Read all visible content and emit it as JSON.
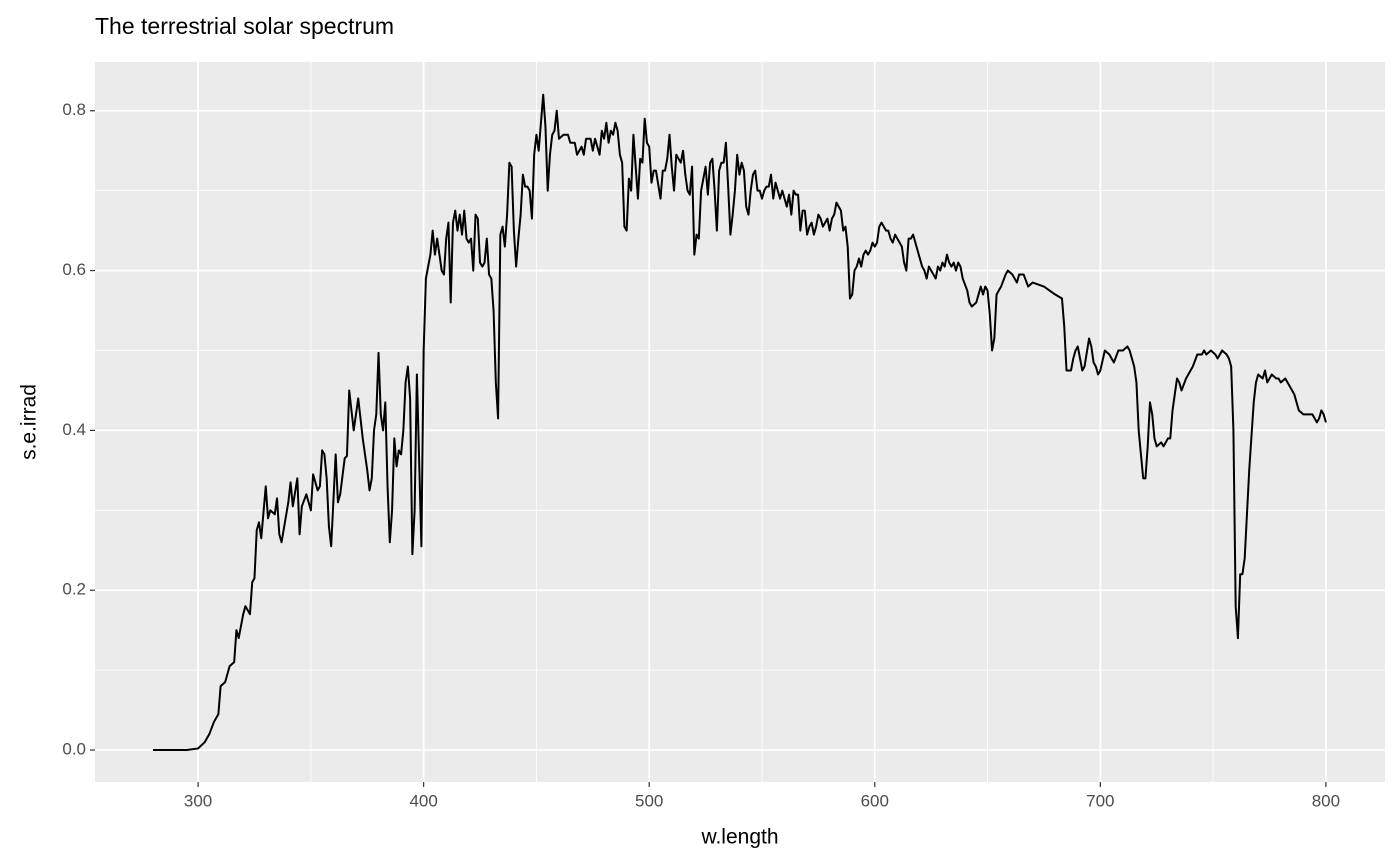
{
  "chart_data": {
    "type": "line",
    "title": "The terrestrial solar spectrum",
    "x_label": "w.length",
    "y_label": "s.e.irrad",
    "xlim": [
      254.3,
      826.2
    ],
    "ylim": [
      -0.04,
      0.861
    ],
    "xticks": [
      300,
      400,
      500,
      600,
      700,
      800
    ],
    "yticks": [
      {
        "value": 0,
        "label": "0.0"
      },
      0.2,
      0.4,
      0.6,
      0.8
    ],
    "x_minor_grid": [
      350,
      450,
      550,
      650,
      750
    ],
    "y_minor_grid": [
      0.1,
      0.3,
      0.5,
      0.7
    ],
    "grid": true,
    "series": [
      {
        "name": "s.e.irrad",
        "color": "#000000",
        "x": [
          280,
          290,
          295,
          300,
          303,
          305,
          307,
          309,
          310,
          312,
          314,
          316,
          317,
          318,
          320,
          321,
          323,
          324,
          325,
          326,
          327,
          328,
          330,
          331,
          332,
          334,
          335,
          336,
          337,
          340,
          341,
          342,
          344,
          345,
          346,
          348,
          350,
          351,
          353,
          354,
          355,
          356,
          357,
          358,
          359,
          361,
          362,
          363,
          365,
          366,
          367,
          369,
          371,
          373,
          375,
          376,
          377,
          378,
          379,
          380,
          381,
          382,
          383,
          384,
          385,
          386,
          387,
          388,
          389,
          390,
          391,
          392,
          393,
          394,
          395,
          396,
          397,
          399,
          400,
          401,
          403,
          404,
          405,
          406,
          408,
          409,
          410,
          411,
          412,
          413,
          414,
          415,
          416,
          417,
          418,
          419,
          420,
          421,
          422,
          423,
          424,
          425,
          426,
          427,
          428,
          429,
          430,
          431,
          432,
          433,
          434,
          435,
          436,
          437,
          438,
          439,
          440,
          441,
          442,
          443,
          444,
          445,
          446,
          447,
          448,
          449,
          450,
          451,
          452,
          453,
          454,
          455,
          456,
          457,
          458,
          459,
          460,
          462,
          464,
          465,
          467,
          468,
          470,
          471,
          472,
          474,
          475,
          476,
          478,
          479,
          480,
          481,
          482,
          483,
          484,
          485,
          486,
          487,
          488,
          489,
          490,
          491,
          492,
          493,
          494,
          495,
          496,
          497,
          498,
          499,
          500,
          501,
          502,
          503,
          505,
          506,
          507,
          508,
          509,
          510,
          511,
          512,
          513,
          514,
          515,
          516,
          517,
          518,
          519,
          520,
          521,
          522,
          523,
          525,
          526,
          527,
          528,
          529,
          530,
          531,
          532,
          533,
          534,
          535,
          536,
          537,
          538,
          539,
          540,
          541,
          542,
          543,
          544,
          545,
          546,
          547,
          548,
          549,
          550,
          551,
          552,
          553,
          554,
          555,
          556,
          557,
          558,
          559,
          560,
          561,
          562,
          563,
          564,
          565,
          566,
          567,
          568,
          569,
          570,
          571,
          572,
          573,
          574,
          575,
          576,
          577,
          578,
          579,
          580,
          581,
          582,
          583,
          584,
          585,
          586,
          587,
          588,
          589,
          590,
          591,
          592,
          593,
          594,
          595,
          596,
          597,
          598,
          599,
          600,
          601,
          602,
          603,
          605,
          606,
          607,
          608,
          609,
          610,
          611,
          612,
          613,
          614,
          615,
          616,
          617,
          618,
          619,
          620,
          621,
          622,
          623,
          624,
          625,
          626,
          627,
          628,
          629,
          630,
          631,
          632,
          633,
          634,
          635,
          636,
          637,
          638,
          639,
          641,
          642,
          643,
          645,
          647,
          648,
          649,
          650,
          651,
          652,
          653,
          654,
          656,
          658,
          659,
          661,
          662,
          663,
          664,
          666,
          668,
          670,
          675,
          680,
          683,
          684,
          685,
          686,
          687,
          688,
          689,
          690,
          692,
          693,
          695,
          696,
          697,
          698,
          699,
          700,
          702,
          704,
          705,
          706,
          708,
          710,
          712,
          713,
          715,
          716,
          717,
          718,
          719,
          720,
          721,
          722,
          723,
          724,
          725,
          727,
          728,
          730,
          731,
          732,
          733,
          734,
          735,
          736,
          738,
          740,
          741,
          743,
          745,
          746,
          747,
          749,
          751,
          752,
          754,
          756,
          757,
          758,
          759,
          760,
          761,
          762,
          763,
          764,
          766,
          768,
          769,
          770,
          772,
          773,
          774,
          776,
          778,
          779,
          780,
          782,
          784,
          786,
          787,
          788,
          790,
          792,
          794,
          796,
          797,
          798,
          799,
          800
        ],
        "values": [
          0,
          0,
          0,
          0.002,
          0.01,
          0.02,
          0.035,
          0.045,
          0.08,
          0.085,
          0.105,
          0.11,
          0.15,
          0.14,
          0.17,
          0.18,
          0.17,
          0.21,
          0.215,
          0.275,
          0.285,
          0.265,
          0.33,
          0.29,
          0.3,
          0.295,
          0.315,
          0.27,
          0.26,
          0.31,
          0.335,
          0.305,
          0.34,
          0.27,
          0.305,
          0.32,
          0.3,
          0.345,
          0.325,
          0.33,
          0.375,
          0.37,
          0.34,
          0.28,
          0.255,
          0.37,
          0.31,
          0.32,
          0.365,
          0.368,
          0.45,
          0.4,
          0.44,
          0.39,
          0.35,
          0.325,
          0.34,
          0.4,
          0.42,
          0.497,
          0.42,
          0.4,
          0.435,
          0.33,
          0.26,
          0.3,
          0.39,
          0.355,
          0.375,
          0.37,
          0.4,
          0.46,
          0.48,
          0.44,
          0.245,
          0.3,
          0.47,
          0.255,
          0.5,
          0.59,
          0.62,
          0.65,
          0.62,
          0.64,
          0.6,
          0.595,
          0.64,
          0.66,
          0.56,
          0.66,
          0.675,
          0.65,
          0.67,
          0.645,
          0.675,
          0.64,
          0.635,
          0.64,
          0.6,
          0.67,
          0.665,
          0.61,
          0.605,
          0.61,
          0.64,
          0.595,
          0.59,
          0.55,
          0.46,
          0.415,
          0.645,
          0.655,
          0.63,
          0.67,
          0.735,
          0.73,
          0.65,
          0.605,
          0.64,
          0.67,
          0.72,
          0.705,
          0.705,
          0.7,
          0.665,
          0.745,
          0.77,
          0.75,
          0.785,
          0.82,
          0.78,
          0.7,
          0.745,
          0.77,
          0.775,
          0.8,
          0.765,
          0.77,
          0.77,
          0.76,
          0.76,
          0.745,
          0.755,
          0.745,
          0.765,
          0.765,
          0.75,
          0.765,
          0.745,
          0.775,
          0.765,
          0.785,
          0.76,
          0.775,
          0.77,
          0.785,
          0.775,
          0.745,
          0.735,
          0.655,
          0.65,
          0.715,
          0.7,
          0.77,
          0.73,
          0.69,
          0.74,
          0.735,
          0.79,
          0.76,
          0.755,
          0.71,
          0.725,
          0.725,
          0.69,
          0.725,
          0.725,
          0.74,
          0.77,
          0.73,
          0.7,
          0.745,
          0.74,
          0.735,
          0.75,
          0.72,
          0.7,
          0.695,
          0.73,
          0.62,
          0.645,
          0.64,
          0.7,
          0.73,
          0.695,
          0.735,
          0.74,
          0.7,
          0.65,
          0.725,
          0.735,
          0.735,
          0.76,
          0.705,
          0.645,
          0.67,
          0.7,
          0.745,
          0.72,
          0.735,
          0.725,
          0.68,
          0.67,
          0.7,
          0.72,
          0.725,
          0.7,
          0.7,
          0.69,
          0.7,
          0.705,
          0.705,
          0.72,
          0.69,
          0.71,
          0.7,
          0.69,
          0.7,
          0.69,
          0.68,
          0.695,
          0.67,
          0.7,
          0.695,
          0.695,
          0.65,
          0.675,
          0.675,
          0.645,
          0.655,
          0.66,
          0.645,
          0.655,
          0.67,
          0.665,
          0.655,
          0.66,
          0.665,
          0.65,
          0.665,
          0.67,
          0.685,
          0.68,
          0.675,
          0.65,
          0.655,
          0.63,
          0.565,
          0.57,
          0.6,
          0.605,
          0.615,
          0.605,
          0.62,
          0.625,
          0.62,
          0.625,
          0.635,
          0.63,
          0.635,
          0.655,
          0.66,
          0.65,
          0.65,
          0.64,
          0.635,
          0.645,
          0.64,
          0.635,
          0.63,
          0.61,
          0.6,
          0.64,
          0.64,
          0.645,
          0.635,
          0.625,
          0.615,
          0.605,
          0.6,
          0.59,
          0.605,
          0.6,
          0.595,
          0.59,
          0.605,
          0.6,
          0.61,
          0.605,
          0.62,
          0.61,
          0.605,
          0.61,
          0.6,
          0.61,
          0.605,
          0.59,
          0.575,
          0.56,
          0.555,
          0.56,
          0.58,
          0.57,
          0.58,
          0.575,
          0.545,
          0.5,
          0.515,
          0.57,
          0.58,
          0.595,
          0.6,
          0.595,
          0.59,
          0.585,
          0.595,
          0.595,
          0.58,
          0.585,
          0.58,
          0.57,
          0.565,
          0.53,
          0.475,
          0.475,
          0.475,
          0.49,
          0.5,
          0.505,
          0.475,
          0.48,
          0.515,
          0.505,
          0.485,
          0.48,
          0.47,
          0.475,
          0.5,
          0.495,
          0.49,
          0.485,
          0.5,
          0.5,
          0.505,
          0.5,
          0.48,
          0.46,
          0.4,
          0.37,
          0.34,
          0.34,
          0.38,
          0.435,
          0.42,
          0.39,
          0.38,
          0.385,
          0.38,
          0.39,
          0.39,
          0.425,
          0.445,
          0.465,
          0.46,
          0.45,
          0.465,
          0.475,
          0.48,
          0.495,
          0.495,
          0.5,
          0.495,
          0.5,
          0.495,
          0.49,
          0.5,
          0.495,
          0.49,
          0.48,
          0.4,
          0.18,
          0.14,
          0.22,
          0.22,
          0.24,
          0.35,
          0.435,
          0.46,
          0.47,
          0.465,
          0.475,
          0.46,
          0.47,
          0.465,
          0.465,
          0.46,
          0.465,
          0.455,
          0.445,
          0.435,
          0.425,
          0.42,
          0.42,
          0.42,
          0.41,
          0.415,
          0.425,
          0.42,
          0.41
        ]
      }
    ]
  }
}
